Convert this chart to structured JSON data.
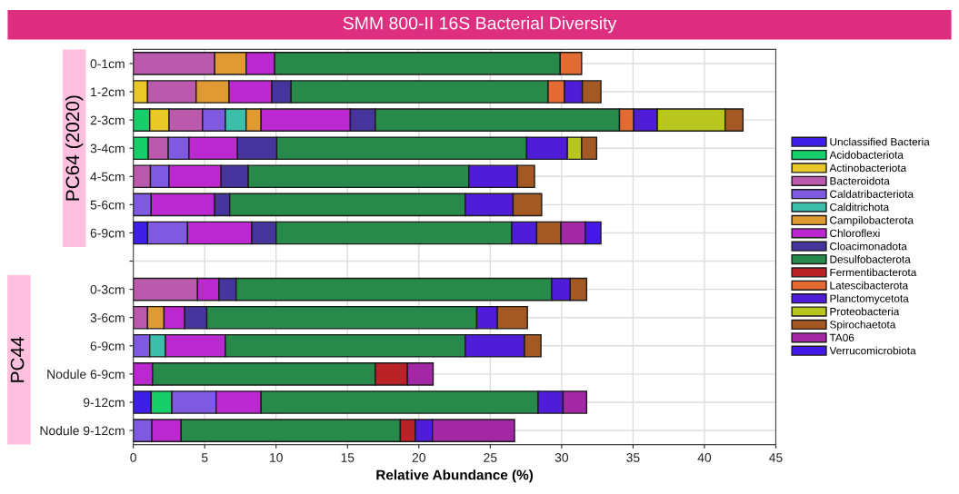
{
  "chart_data": {
    "type": "bar",
    "orientation": "horizontal",
    "stacked": true,
    "title": "SMM 800-II 16S Bacterial Diversity",
    "xlabel": "Relative Abundance (%)",
    "annotations": [
      "PC64 (2020)",
      "PC44"
    ],
    "categories": [
      "0-1cm",
      "1-2cm",
      "2-3cm",
      "3-4cm",
      "4-5cm",
      "5-6cm",
      "6-9cm",
      null,
      "0-3cm",
      "3-6cm",
      "6-9cm",
      "Nodule 6-9cm",
      "9-12cm",
      "Nodule 9-12cm"
    ],
    "xlim": [
      0,
      45
    ],
    "xticks": [
      0,
      5,
      10,
      15,
      20,
      25,
      30,
      35,
      40,
      45
    ],
    "grid": true,
    "legend": "right",
    "series": [
      {
        "name": "Unclassified Bacteria",
        "color": "#3f1ee8",
        "values": [
          null,
          null,
          null,
          null,
          null,
          null,
          1.0,
          null,
          null,
          null,
          null,
          null,
          1.25,
          null
        ]
      },
      {
        "name": "Acidobacteriota",
        "color": "#17cf6a",
        "values": [
          null,
          null,
          1.15,
          1.05,
          null,
          null,
          null,
          null,
          null,
          null,
          null,
          null,
          1.45,
          null
        ]
      },
      {
        "name": "Actinobacteriota",
        "color": "#e9c82a",
        "values": [
          null,
          1.0,
          1.35,
          null,
          null,
          null,
          null,
          null,
          null,
          null,
          null,
          null,
          null,
          null
        ]
      },
      {
        "name": "Bacteroidota",
        "color": "#bb5aad",
        "values": [
          5.7,
          3.4,
          2.35,
          1.4,
          1.2,
          null,
          null,
          null,
          4.5,
          1.0,
          null,
          null,
          null,
          null
        ]
      },
      {
        "name": "Caldatribacteriota",
        "color": "#7f5ae0",
        "values": [
          null,
          null,
          1.6,
          1.45,
          1.3,
          1.25,
          2.8,
          null,
          null,
          null,
          1.15,
          null,
          3.1,
          1.3
        ]
      },
      {
        "name": "Calditrichota",
        "color": "#3cbfa8",
        "values": [
          null,
          null,
          1.45,
          null,
          null,
          null,
          null,
          null,
          null,
          null,
          1.1,
          null,
          null,
          null
        ]
      },
      {
        "name": "Campilobacterota",
        "color": "#e09a33",
        "values": [
          2.2,
          2.3,
          1.05,
          null,
          null,
          null,
          null,
          null,
          null,
          1.15,
          null,
          null,
          null,
          null
        ]
      },
      {
        "name": "Chloroflexi",
        "color": "#bb28d0",
        "values": [
          2.0,
          3.0,
          6.25,
          3.4,
          3.65,
          4.45,
          4.5,
          null,
          1.5,
          1.45,
          4.2,
          1.35,
          3.15,
          2.05
        ]
      },
      {
        "name": "Cloacimonadota",
        "color": "#47359e",
        "values": [
          null,
          1.35,
          1.75,
          2.75,
          1.9,
          1.05,
          1.7,
          null,
          1.2,
          1.55,
          null,
          null,
          null,
          null
        ]
      },
      {
        "name": "Desulfobacterota",
        "color": "#278a4a",
        "values": [
          20.0,
          18.0,
          17.1,
          17.5,
          15.45,
          16.5,
          16.5,
          null,
          22.1,
          18.9,
          16.8,
          15.6,
          19.4,
          15.35
        ]
      },
      {
        "name": "Fermentibacterota",
        "color": "#bb2228",
        "values": [
          null,
          null,
          null,
          null,
          null,
          null,
          null,
          null,
          null,
          null,
          null,
          2.25,
          null,
          1.05
        ]
      },
      {
        "name": "Latescibacterota",
        "color": "#e36a33",
        "values": [
          1.5,
          1.15,
          1.0,
          null,
          null,
          null,
          null,
          null,
          null,
          null,
          null,
          null,
          null,
          null
        ]
      },
      {
        "name": "Planctomycetota",
        "color": "#4f1dd8",
        "values": [
          null,
          1.25,
          1.65,
          2.85,
          3.4,
          3.35,
          1.75,
          null,
          1.3,
          1.45,
          4.15,
          null,
          1.75,
          1.2
        ]
      },
      {
        "name": "Proteobacteria",
        "color": "#b8c61d",
        "values": [
          null,
          null,
          4.75,
          1.0,
          null,
          null,
          null,
          null,
          null,
          null,
          null,
          null,
          null,
          null
        ]
      },
      {
        "name": "Spirochaetota",
        "color": "#a45823",
        "values": [
          null,
          1.3,
          1.25,
          1.05,
          1.2,
          2.0,
          1.7,
          null,
          1.15,
          2.1,
          1.15,
          null,
          null,
          null
        ]
      },
      {
        "name": "TA06",
        "color": "#a228a6",
        "values": [
          null,
          null,
          null,
          null,
          null,
          null,
          1.7,
          null,
          null,
          null,
          null,
          1.8,
          1.65,
          5.75
        ]
      },
      {
        "name": "Verrucomicrobiota",
        "color": "#4418e8",
        "values": [
          null,
          null,
          null,
          null,
          null,
          null,
          1.1,
          null,
          null,
          null,
          null,
          null,
          null,
          null
        ]
      }
    ]
  }
}
